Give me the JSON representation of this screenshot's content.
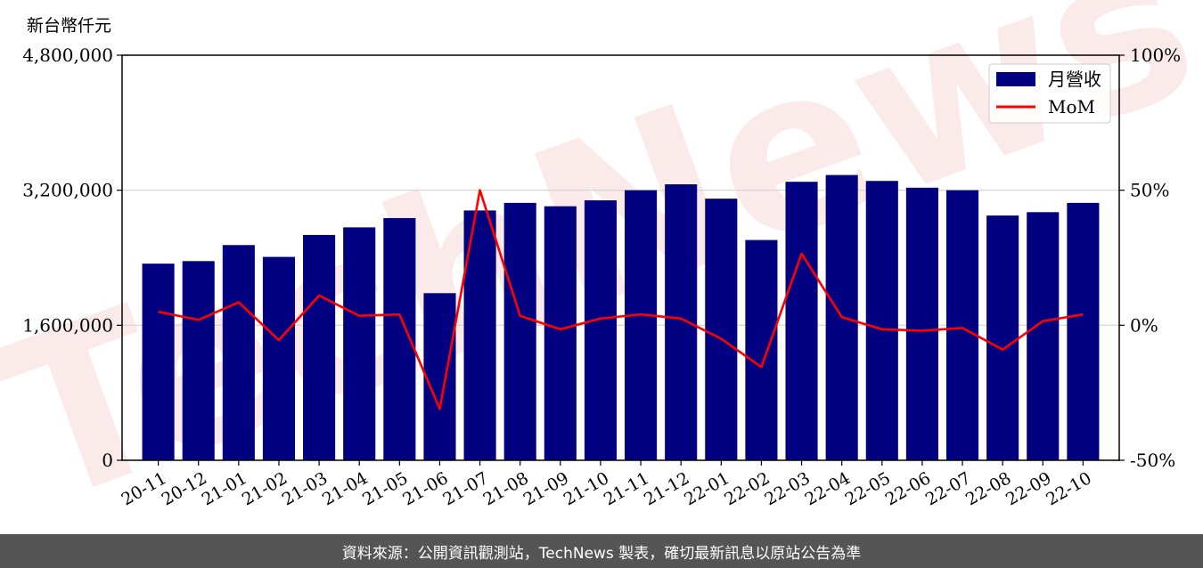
{
  "unit_label": "新台幣仟元",
  "footer_text": "資料來源：公開資訊觀測站，TechNews 製表，確切最新訊息以原站公告為準",
  "colors": {
    "bar": "#000080",
    "line": "#ff0000",
    "grid": "#d3d3d3",
    "footer_bg": "#555555"
  },
  "chart_data": {
    "type": "bar",
    "categories": [
      "20-11",
      "20-12",
      "21-01",
      "21-02",
      "21-03",
      "21-04",
      "21-05",
      "21-06",
      "21-07",
      "21-08",
      "21-09",
      "21-10",
      "21-11",
      "21-12",
      "22-01",
      "22-02",
      "22-03",
      "22-04",
      "22-05",
      "22-06",
      "22-07",
      "22-08",
      "22-09",
      "22-10"
    ],
    "series": [
      {
        "name": "月營收",
        "type": "bar",
        "axis": "left",
        "values": [
          2330000,
          2360000,
          2550000,
          2410000,
          2670000,
          2760000,
          2870000,
          1980000,
          2960000,
          3050000,
          3010000,
          3080000,
          3200000,
          3270000,
          3100000,
          2610000,
          3300000,
          3380000,
          3310000,
          3230000,
          3200000,
          2900000,
          2940000,
          3050000
        ]
      },
      {
        "name": "MoM",
        "type": "line",
        "axis": "right",
        "values": [
          5,
          2,
          8.5,
          -5.5,
          11,
          3.5,
          4,
          -31,
          50,
          3.5,
          -1.5,
          2.5,
          4,
          2.5,
          -5,
          -15.5,
          26.5,
          3,
          -1.5,
          -2,
          -1,
          -9,
          1.5,
          4
        ]
      }
    ],
    "ylim": [
      0,
      4800000
    ],
    "yticks": [
      "0",
      "1,600,000",
      "3,200,000",
      "4,800,000"
    ],
    "yticks_values": [
      0,
      1600000,
      3200000,
      4800000
    ],
    "y2lim": [
      -50,
      100
    ],
    "y2ticks": [
      "-50%",
      "0%",
      "50%",
      "100%"
    ],
    "y2ticks_values": [
      -50,
      0,
      50,
      100
    ],
    "grid": "horizontal",
    "legend": "top-right",
    "watermark": "TechNews"
  }
}
